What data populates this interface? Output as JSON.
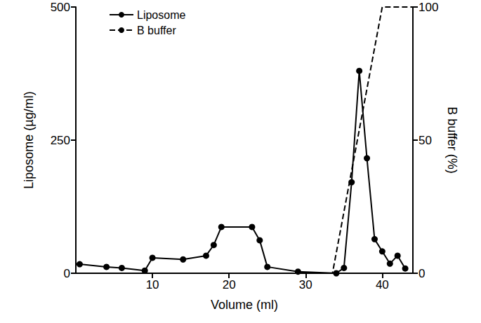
{
  "chart_data": {
    "type": "line",
    "x_label": "Volume (ml)",
    "y_label": "Liposome (µg/ml)",
    "y2_label": "B buffer (%)",
    "xlim": [
      0,
      44
    ],
    "xticks": [
      10,
      20,
      30,
      40
    ],
    "ylim": [
      0,
      500
    ],
    "yticks": [
      0,
      250,
      500
    ],
    "y2lim": [
      0,
      100
    ],
    "y2ticks": [
      0,
      50,
      100
    ],
    "grid": false,
    "legend": "top-left",
    "series": [
      {
        "name": "Liposome",
        "color": "#000000",
        "marker": "circle",
        "line_style": "solid",
        "axis": "y",
        "x": [
          0.5,
          4,
          6,
          9,
          10,
          14,
          17,
          18,
          19,
          23,
          24,
          25,
          29,
          34,
          35,
          36,
          37,
          38,
          39,
          40,
          41,
          42,
          43
        ],
        "values": [
          17,
          12,
          10,
          5,
          29,
          26,
          33,
          53,
          87,
          87,
          62,
          12,
          3,
          0,
          10,
          171,
          380,
          216,
          64,
          41,
          18,
          33,
          9
        ]
      },
      {
        "name": "B buffer",
        "color": "#000000",
        "marker": "none",
        "line_style": "dashed",
        "axis": "y2",
        "x": [
          0,
          33.5,
          40,
          44
        ],
        "values": [
          0,
          0,
          100,
          100
        ]
      }
    ]
  }
}
